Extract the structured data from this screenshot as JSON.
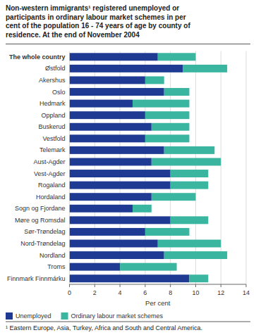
{
  "chart_data": {
    "type": "bar",
    "orientation": "horizontal",
    "stacked": true,
    "title": "Non-western immigrants¹ registered unemployed or\nparticipants in ordinary labour market schemes in per\ncent of the population 16 - 74 years of age by county of\nresidence. At the end of November 2004",
    "categories": [
      "The whole country",
      "Østfold",
      "Akershus",
      "Oslo",
      "Hedmark",
      "Oppland",
      "Buskerud",
      "Vestfold",
      "Telemark",
      "Aust-Agder",
      "Vest-Agder",
      "Rogaland",
      "Hordaland",
      "Sogn og Fjordane",
      "Møre og Romsdal",
      "Sør-Trøndelag",
      "Nord-Trøndelag",
      "Nordland",
      "Troms",
      "Finnmark Finnmárku"
    ],
    "series": [
      {
        "name": "Unemployed",
        "color": "#1f3a93",
        "values": [
          7.0,
          9.0,
          6.0,
          7.5,
          5.0,
          6.0,
          6.5,
          6.0,
          7.5,
          6.5,
          8.0,
          8.0,
          6.5,
          5.0,
          8.0,
          6.0,
          7.0,
          7.5,
          4.0,
          9.5
        ]
      },
      {
        "name": "Ordinary labour market schemes",
        "color": "#3ab5a0",
        "values": [
          3.0,
          3.5,
          1.5,
          2.0,
          4.5,
          3.5,
          3.0,
          3.5,
          4.0,
          5.5,
          3.0,
          3.0,
          3.5,
          1.5,
          3.0,
          3.5,
          5.0,
          5.0,
          4.5,
          1.5
        ]
      }
    ],
    "xlabel": "Per cent",
    "xlim": [
      0,
      14
    ],
    "xticks": [
      0,
      2,
      4,
      6,
      8,
      10,
      12,
      14
    ],
    "grid": true,
    "legend": "bottom",
    "annotations": [
      "¹  Eastern Europe, Asia, Turkey, Africa and South and Central America."
    ]
  }
}
